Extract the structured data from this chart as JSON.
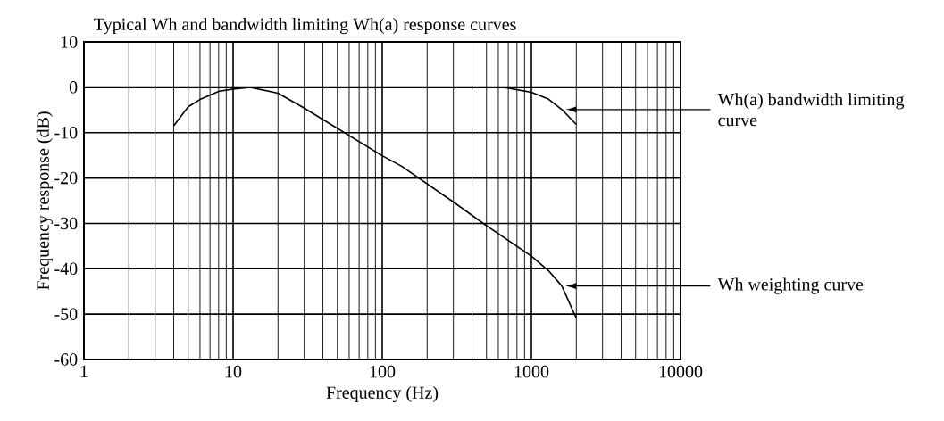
{
  "chart_data": {
    "type": "line",
    "title": "Typical Wh and bandwidth limiting Wh(a) response curves",
    "xlabel": "Frequency (Hz)",
    "ylabel": "Frequency response (dB)",
    "log": "x",
    "grid": true,
    "marker": "none",
    "line_style": "solid",
    "xlim": [
      1,
      10000
    ],
    "xticks": [
      1,
      10,
      100,
      1000,
      10000
    ],
    "ylim": [
      -60,
      10
    ],
    "yticks": [
      -60,
      -50,
      -40,
      -30,
      -20,
      -10,
      0,
      10
    ],
    "series": [
      {
        "color": "#000000",
        "x": [
          4,
          5,
          6,
          8,
          10,
          13,
          20,
          30,
          100,
          135,
          300,
          500,
          1000,
          1300,
          1600,
          2000
        ],
        "values": [
          -8.5,
          -4.3,
          -2.7,
          -0.9,
          -0.4,
          0,
          -1.3,
          -4.6,
          -15.1,
          -17.4,
          -25.3,
          -30.5,
          -37.2,
          -40.4,
          -43.8,
          -50.9
        ]
      },
      {
        "color": "#000000",
        "x": [
          650,
          1000,
          1300,
          1600,
          2000
        ],
        "values": [
          0,
          -1.1,
          -2.6,
          -4.9,
          -8.2
        ]
      }
    ],
    "annotations": [
      "Wh(a) bandwidth limiting curve",
      "Wh weighting curve"
    ]
  }
}
